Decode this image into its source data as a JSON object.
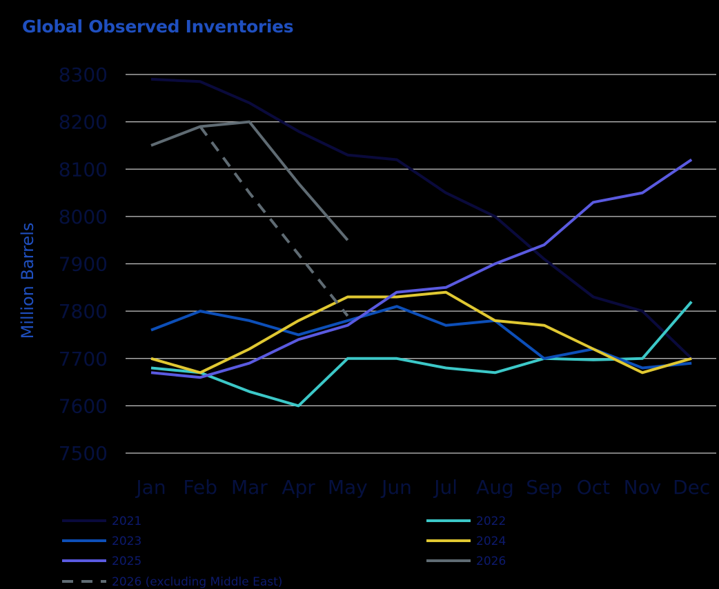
{
  "chart_data": {
    "type": "line",
    "title": "Global Observed Inventories",
    "xlabel": "",
    "ylabel": "Million Barrels",
    "categories": [
      "Jan",
      "Feb",
      "Mar",
      "Apr",
      "May",
      "Jun",
      "Jul",
      "Aug",
      "Sep",
      "Oct",
      "Nov",
      "Dec"
    ],
    "ylim": [
      7500,
      8300
    ],
    "yticks": [
      7500,
      7600,
      7700,
      7800,
      7900,
      8000,
      8100,
      8200,
      8300
    ],
    "grid": true,
    "legend_position": "bottom",
    "series": [
      {
        "name": "2021",
        "color": "#0a0a3c",
        "dashed": false,
        "values": [
          8290,
          8285,
          8240,
          8180,
          8130,
          8120,
          8050,
          8000,
          7910,
          7830,
          7800,
          7700
        ]
      },
      {
        "name": "2022",
        "color": "#3cc8c8",
        "dashed": false,
        "values": [
          7680,
          7670,
          7630,
          7600,
          7700,
          7700,
          7680,
          7670,
          7700,
          7697,
          7700,
          7820
        ]
      },
      {
        "name": "2023",
        "color": "#0d4fb8",
        "dashed": false,
        "values": [
          7760,
          7800,
          7780,
          7750,
          7780,
          7810,
          7770,
          7780,
          7700,
          7720,
          7680,
          7690
        ]
      },
      {
        "name": "2024",
        "color": "#e0c832",
        "dashed": false,
        "values": [
          7700,
          7670,
          7720,
          7780,
          7830,
          7830,
          7840,
          7780,
          7770,
          7720,
          7670,
          7700
        ]
      },
      {
        "name": "2025",
        "color": "#5a5ae0",
        "dashed": false,
        "values": [
          7670,
          7660,
          7690,
          7740,
          7770,
          7840,
          7850,
          7900,
          7940,
          8030,
          8050,
          8120
        ]
      },
      {
        "name": "2026",
        "color": "#5f6b73",
        "dashed": false,
        "values": [
          8150,
          8190,
          8200,
          8070,
          7950,
          null,
          null,
          null,
          null,
          null,
          null,
          null
        ]
      },
      {
        "name": "2026 (excluding Middle East)",
        "color": "#5f6b73",
        "dashed": true,
        "values": [
          null,
          8190,
          8050,
          7920,
          7790,
          null,
          null,
          null,
          null,
          null,
          null,
          null
        ]
      }
    ]
  }
}
